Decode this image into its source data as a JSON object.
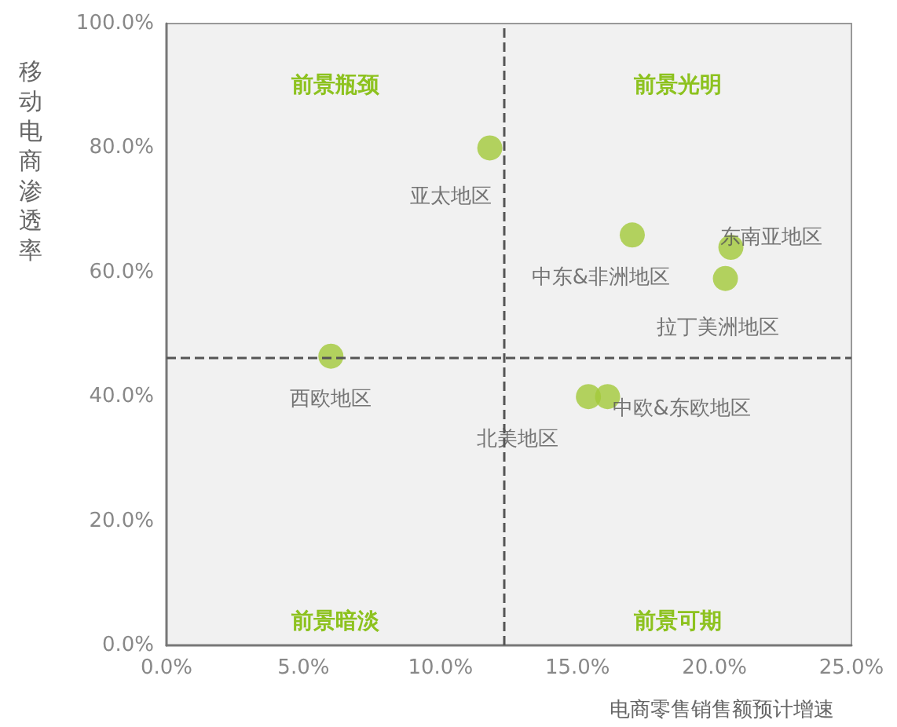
{
  "chart_data": {
    "type": "scatter",
    "xlabel": "电商零售销售额预计增速",
    "ylabel": "移动电商渗透率",
    "xlim": [
      0,
      25
    ],
    "xticks": [
      {
        "value": 0,
        "label": "0.0%"
      },
      {
        "value": 5,
        "label": "5.0%"
      },
      {
        "value": 10,
        "label": "10.0%"
      },
      {
        "value": 15,
        "label": "15.0%"
      },
      {
        "value": 20,
        "label": "20.0%"
      },
      {
        "value": 25,
        "label": "25.0%"
      }
    ],
    "ylim": [
      0,
      100
    ],
    "yticks": [
      {
        "value": 0,
        "label": "0.0%"
      },
      {
        "value": 20,
        "label": "20.0%"
      },
      {
        "value": 40,
        "label": "40.0%"
      },
      {
        "value": 60,
        "label": "60.0%"
      },
      {
        "value": 80,
        "label": "80.0%"
      },
      {
        "value": 100,
        "label": "100.0%"
      }
    ],
    "series": [
      {
        "name": "亚太地区",
        "color": "#a3c93a",
        "x": [
          11.8
        ],
        "values": [
          80
        ]
      },
      {
        "name": "东南亚地区",
        "color": "#a3c93a",
        "x": [
          20.6
        ],
        "values": [
          64
        ]
      },
      {
        "name": "中东&非洲地区",
        "color": "#a3c93a",
        "x": [
          17.0
        ],
        "values": [
          66
        ]
      },
      {
        "name": "拉丁美洲地区",
        "color": "#a3c93a",
        "x": [
          20.4
        ],
        "values": [
          59
        ]
      },
      {
        "name": "西欧地区",
        "color": "#a3c93a",
        "x": [
          6.0
        ],
        "values": [
          46.5
        ]
      },
      {
        "name": "北美地区",
        "color": "#a3c93a",
        "x": [
          15.4
        ],
        "values": [
          40
        ]
      },
      {
        "name": "中欧&东欧地区",
        "color": "#a3c93a",
        "x": [
          16.1
        ],
        "values": [
          40
        ]
      }
    ],
    "ref_lines": [
      {
        "axis": "x",
        "value": 12.3,
        "color": "#555555",
        "line_style": "dashed"
      },
      {
        "axis": "y",
        "value": 46.2,
        "color": "#555555",
        "line_style": "dashed"
      }
    ],
    "annotations": [
      "前景瓶颈",
      "前景光明",
      "前景暗淡",
      "前景可期"
    ],
    "marker": "circle",
    "grid": false,
    "legend": false
  }
}
